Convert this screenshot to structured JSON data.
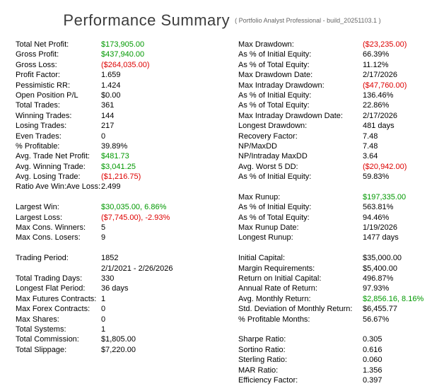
{
  "header": {
    "title": "Performance Summary",
    "build_info": "( Portfolio Analyst Professional - build_20251103.1 )"
  },
  "colors": {
    "positive": "#009900",
    "negative": "#dd0000",
    "text": "#000000",
    "title": "#3c3c3c"
  },
  "table": {
    "rows": [
      {
        "left_label": "Total Net Profit:",
        "left_value": "$173,905.00",
        "left_color": "pos",
        "right_label": "Max Drawdown:",
        "right_value": "($23,235.00)",
        "right_color": "neg"
      },
      {
        "left_label": "Gross Profit:",
        "left_value": "$437,940.00",
        "left_color": "pos",
        "right_label": "As % of Initial Equity:",
        "right_value": "66.39%",
        "right_color": ""
      },
      {
        "left_label": "Gross Loss:",
        "left_value": "($264,035.00)",
        "left_color": "neg",
        "right_label": "As % of Total Equity:",
        "right_value": "11.12%",
        "right_color": ""
      },
      {
        "left_label": "Profit Factor:",
        "left_value": "1.659",
        "left_color": "",
        "right_label": "Max Drawdown Date:",
        "right_value": "2/17/2026",
        "right_color": ""
      },
      {
        "left_label": "Pessimistic RR:",
        "left_value": "1.424",
        "left_color": "",
        "right_label": "Max Intraday Drawdown:",
        "right_value": "($47,760.00)",
        "right_color": "neg"
      },
      {
        "left_label": "Open Position P/L",
        "left_value": "$0.00",
        "left_color": "",
        "right_label": "As % of Initial Equity:",
        "right_value": "136.46%",
        "right_color": ""
      },
      {
        "left_label": "Total Trades:",
        "left_value": "361",
        "left_color": "",
        "right_label": "As % of Total Equity:",
        "right_value": "22.86%",
        "right_color": ""
      },
      {
        "left_label": "Winning Trades:",
        "left_value": "144",
        "left_color": "",
        "right_label": "Max Intraday Drawdown Date:",
        "right_value": "2/17/2026",
        "right_color": ""
      },
      {
        "left_label": "Losing Trades:",
        "left_value": "217",
        "left_color": "",
        "right_label": "Longest Drawdown:",
        "right_value": "481 days",
        "right_color": ""
      },
      {
        "left_label": "Even Trades:",
        "left_value": "0",
        "left_color": "",
        "right_label": "Recovery Factor:",
        "right_value": "7.48",
        "right_color": ""
      },
      {
        "left_label": "% Profitable:",
        "left_value": "39.89%",
        "left_color": "",
        "right_label": "NP/MaxDD",
        "right_value": "7.48",
        "right_color": ""
      },
      {
        "left_label": "Avg. Trade Net Profit:",
        "left_value": "$481.73",
        "left_color": "pos",
        "right_label": "NP/Intraday MaxDD",
        "right_value": "3.64",
        "right_color": ""
      },
      {
        "left_label": "Avg. Winning Trade:",
        "left_value": "$3,041.25",
        "left_color": "pos",
        "right_label": "Avg. Worst 5 DD:",
        "right_value": "($20,942.00)",
        "right_color": "neg"
      },
      {
        "left_label": "Avg. Losing Trade:",
        "left_value": "($1,216.75)",
        "left_color": "neg",
        "right_label": "As % of Initial Equity:",
        "right_value": "59.83%",
        "right_color": ""
      },
      {
        "left_label": "Ratio Ave Win:Ave Loss:",
        "left_value": "2.499",
        "left_color": "",
        "right_label": "",
        "right_value": "",
        "right_color": ""
      },
      {
        "left_label": "",
        "left_value": "",
        "left_color": "",
        "right_label": "Max Runup:",
        "right_value": "$197,335.00",
        "right_color": "pos"
      },
      {
        "left_label": "Largest Win:",
        "left_value": "$30,035.00, 6.86%",
        "left_color": "pos",
        "right_label": "As % of Initial Equity:",
        "right_value": "563.81%",
        "right_color": ""
      },
      {
        "left_label": "Largest Loss:",
        "left_value": "($7,745.00), -2.93%",
        "left_color": "neg",
        "right_label": "As % of Total Equity:",
        "right_value": "94.46%",
        "right_color": ""
      },
      {
        "left_label": "Max Cons. Winners:",
        "left_value": "5",
        "left_color": "",
        "right_label": "Max Runup Date:",
        "right_value": "1/19/2026",
        "right_color": ""
      },
      {
        "left_label": "Max Cons. Losers:",
        "left_value": "9",
        "left_color": "",
        "right_label": "Longest Runup:",
        "right_value": "1477 days",
        "right_color": ""
      },
      {
        "left_label": "",
        "left_value": "",
        "left_color": "",
        "right_label": "",
        "right_value": "",
        "right_color": ""
      },
      {
        "left_label": "Trading Period:",
        "left_value": "1852",
        "left_color": "",
        "right_label": "Initial Capital:",
        "right_value": "$35,000.00",
        "right_color": ""
      },
      {
        "left_label": "",
        "left_value": "2/1/2021 - 2/26/2026",
        "left_color": "",
        "right_label": "Margin Requirements:",
        "right_value": "$5,400.00",
        "right_color": ""
      },
      {
        "left_label": "Total Trading Days:",
        "left_value": "330",
        "left_color": "",
        "right_label": "Return on Initial Capital:",
        "right_value": "496.87%",
        "right_color": ""
      },
      {
        "left_label": "Longest Flat Period:",
        "left_value": "36 days",
        "left_color": "",
        "right_label": "Annual Rate of Return:",
        "right_value": "97.93%",
        "right_color": ""
      },
      {
        "left_label": "Max Futures Contracts:",
        "left_value": "1",
        "left_color": "",
        "right_label": "Avg. Monthly Return:",
        "right_value": "$2,856.16, 8.16%",
        "right_color": "pos"
      },
      {
        "left_label": "Max Forex Contracts:",
        "left_value": "0",
        "left_color": "",
        "right_label": "Std. Deviation of Monthly Return:",
        "right_value": "$6,455.77",
        "right_color": ""
      },
      {
        "left_label": "Max Shares:",
        "left_value": "0",
        "left_color": "",
        "right_label": "% Profitable Months:",
        "right_value": "56.67%",
        "right_color": ""
      },
      {
        "left_label": "Total Systems:",
        "left_value": "1",
        "left_color": "",
        "right_label": "",
        "right_value": "",
        "right_color": ""
      },
      {
        "left_label": "Total Commission:",
        "left_value": "$1,805.00",
        "left_color": "",
        "right_label": "Sharpe Ratio:",
        "right_value": "0.305",
        "right_color": ""
      },
      {
        "left_label": "Total Slippage:",
        "left_value": "$7,220.00",
        "left_color": "",
        "right_label": "Sortino Ratio:",
        "right_value": "0.616",
        "right_color": ""
      },
      {
        "left_label": "",
        "left_value": "",
        "left_color": "",
        "right_label": "Sterling Ratio:",
        "right_value": "0.060",
        "right_color": ""
      },
      {
        "left_label": "",
        "left_value": "",
        "left_color": "",
        "right_label": "MAR Ratio:",
        "right_value": "1.356",
        "right_color": ""
      },
      {
        "left_label": "",
        "left_value": "",
        "left_color": "",
        "right_label": "Efficiency Factor:",
        "right_value": "0.397",
        "right_color": ""
      }
    ]
  }
}
